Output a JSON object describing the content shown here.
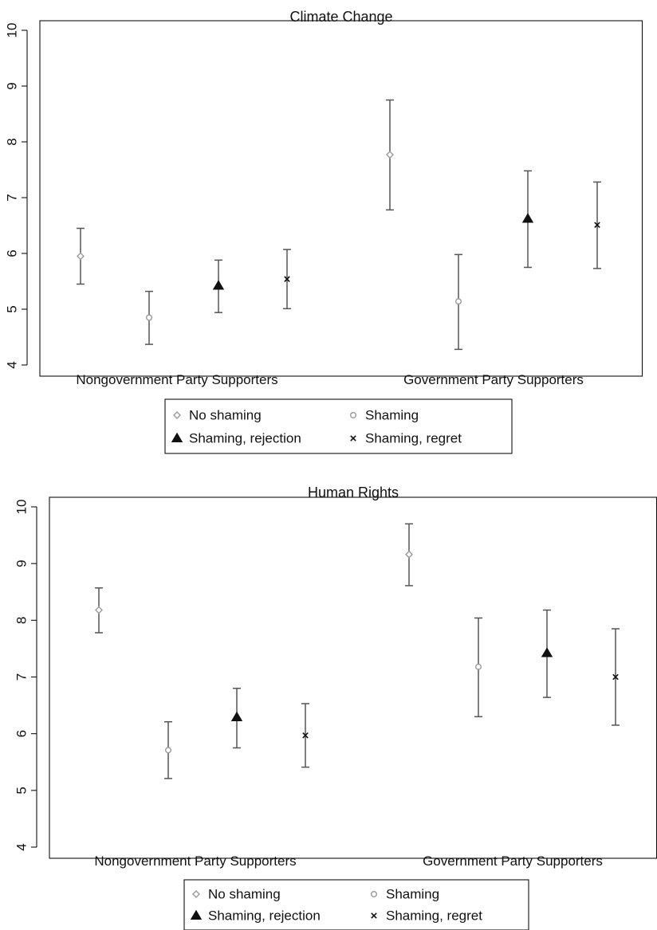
{
  "chart_data": [
    {
      "type": "scatter",
      "title": "Climate Change",
      "xlabel": "",
      "ylabel": "",
      "ylim": [
        4,
        10
      ],
      "yticks": [
        "4",
        "5",
        "6",
        "7",
        "8",
        "9",
        "10"
      ],
      "categories": [
        "Nongovernment Party Supporters",
        "Government Party Supporters"
      ],
      "error_bars": true,
      "grid": false,
      "legend": "bottom",
      "series": [
        {
          "name": "No shaming",
          "marker": "diamond-hollow",
          "color": "#9a9a9a",
          "values": [
            5.95,
            7.77
          ],
          "lower": [
            5.45,
            6.78
          ],
          "upper": [
            6.45,
            8.75
          ]
        },
        {
          "name": "Shaming",
          "marker": "circle-hollow",
          "color": "#9a9a9a",
          "values": [
            4.85,
            5.14
          ],
          "lower": [
            4.37,
            4.28
          ],
          "upper": [
            5.32,
            5.98
          ]
        },
        {
          "name": "Shaming, rejection",
          "marker": "triangle-filled",
          "color": "#111111",
          "values": [
            5.42,
            6.62
          ],
          "lower": [
            4.94,
            5.75
          ],
          "upper": [
            5.88,
            7.48
          ]
        },
        {
          "name": "Shaming, regret",
          "marker": "x",
          "color": "#111111",
          "values": [
            5.54,
            6.51
          ],
          "lower": [
            5.01,
            5.73
          ],
          "upper": [
            6.07,
            7.28
          ]
        }
      ]
    },
    {
      "type": "scatter",
      "title": "Human Rights",
      "xlabel": "",
      "ylabel": "",
      "ylim": [
        4,
        10
      ],
      "yticks": [
        "4",
        "5",
        "6",
        "7",
        "8",
        "9",
        "10"
      ],
      "categories": [
        "Nongovernment Party Supporters",
        "Government Party Supporters"
      ],
      "error_bars": true,
      "grid": false,
      "legend": "bottom",
      "series": [
        {
          "name": "No shaming",
          "marker": "diamond-hollow",
          "color": "#9a9a9a",
          "values": [
            8.18,
            9.16
          ],
          "lower": [
            7.78,
            8.61
          ],
          "upper": [
            8.57,
            9.7
          ]
        },
        {
          "name": "Shaming",
          "marker": "circle-hollow",
          "color": "#9a9a9a",
          "values": [
            5.71,
            7.18
          ],
          "lower": [
            5.21,
            6.3
          ],
          "upper": [
            6.21,
            8.04
          ]
        },
        {
          "name": "Shaming, rejection",
          "marker": "triangle-filled",
          "color": "#111111",
          "values": [
            6.29,
            7.42
          ],
          "lower": [
            5.75,
            6.64
          ],
          "upper": [
            6.8,
            8.18
          ]
        },
        {
          "name": "Shaming, regret",
          "marker": "x",
          "color": "#111111",
          "values": [
            5.97,
            7.0
          ],
          "lower": [
            5.41,
            6.15
          ],
          "upper": [
            6.53,
            7.85
          ]
        }
      ]
    }
  ]
}
